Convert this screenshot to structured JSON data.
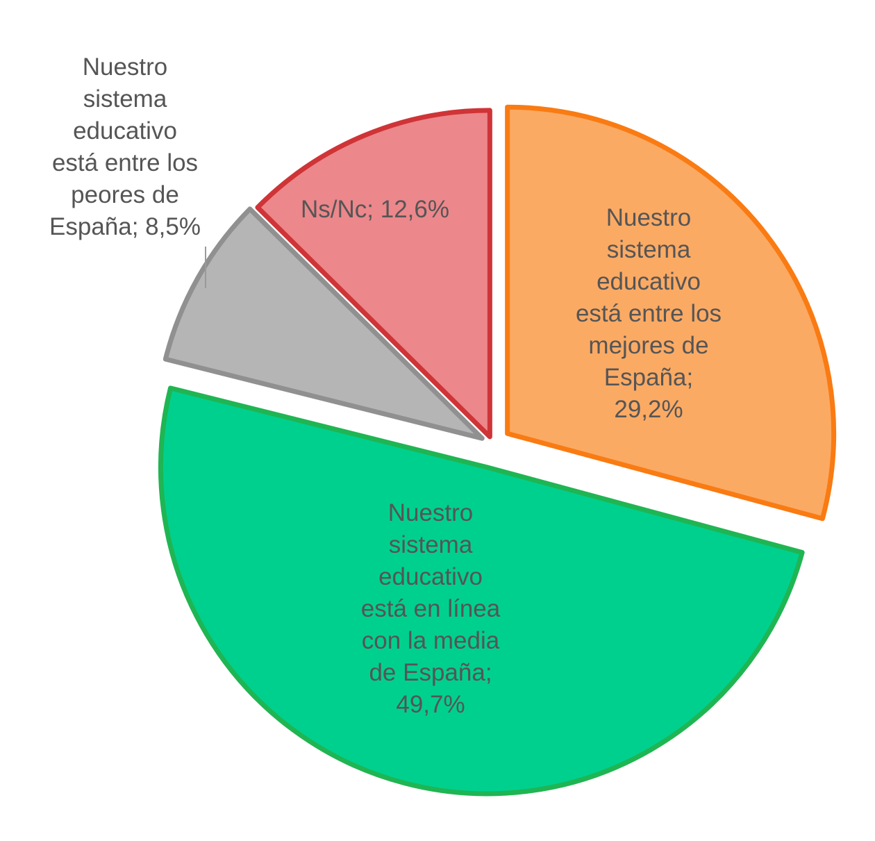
{
  "chart_data": {
    "type": "pie",
    "start_angle_deg": 0,
    "direction": "clockwise",
    "slices": [
      {
        "label": "Nuestro sistema educativo está entre los mejores de España; 29,2%",
        "label_lines": [
          "Nuestro",
          "sistema",
          "educativo",
          "está entre los",
          "mejores de",
          "España;",
          "29,2%"
        ],
        "category": "Nuestro sistema educativo está entre los mejores de España",
        "value": 29.2,
        "fill": "#fbaa64",
        "stroke": "#f97b12"
      },
      {
        "label": "Nuestro sistema educativo está en línea con la media de España; 49,7%",
        "label_lines": [
          "Nuestro",
          "sistema",
          "educativo",
          "está en línea",
          "con la media",
          "de España;",
          "49,7%"
        ],
        "category": "Nuestro sistema educativo está en línea con la media de España",
        "value": 49.7,
        "fill": "#00d08e",
        "stroke": "#1fb553"
      },
      {
        "label": "Nuestro sistema educativo está entre los peores de España; 8,5%",
        "label_lines": [
          "Nuestro",
          "sistema",
          "educativo",
          "está entre los",
          "peores de",
          "España; 8,5%"
        ],
        "category": "Nuestro sistema educativo está entre los peores de España",
        "value": 8.5,
        "fill": "#b5b5b5",
        "stroke": "#909090"
      },
      {
        "label": "Ns/Nc; 12,6%",
        "label_lines": [
          "Ns/Nc; 12,6%"
        ],
        "category": "Ns/Nc",
        "value": 12.6,
        "fill": "#ec878b",
        "stroke": "#cf3437"
      }
    ]
  }
}
